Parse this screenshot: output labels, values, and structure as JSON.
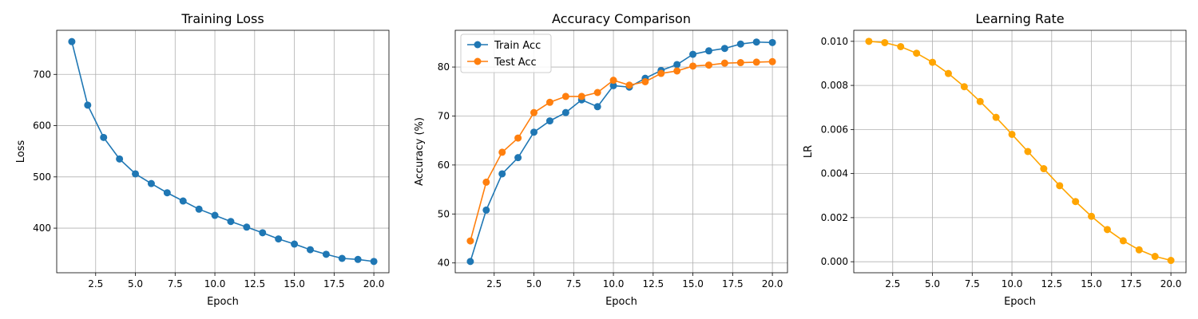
{
  "chart_data": [
    {
      "type": "line",
      "title": "Training Loss",
      "xlabel": "Epoch",
      "ylabel": "Loss",
      "xlim": [
        0.05,
        20.95
      ],
      "ylim": [
        313,
        786
      ],
      "xticks": [
        2.5,
        5,
        7.5,
        10,
        12.5,
        15,
        17.5,
        20
      ],
      "xtick_labels": [
        "2.5",
        "5.0",
        "7.5",
        "10.0",
        "12.5",
        "15.0",
        "17.5",
        "20.0"
      ],
      "yticks": [
        400,
        500,
        600,
        700
      ],
      "ytick_labels": [
        "400",
        "500",
        "600",
        "700"
      ],
      "grid": true,
      "legend": null,
      "x": [
        1,
        2,
        3,
        4,
        5,
        6,
        7,
        8,
        9,
        10,
        11,
        12,
        13,
        14,
        15,
        16,
        17,
        18,
        19,
        20
      ],
      "series": [
        {
          "color": "#1f77b4",
          "values": [
            764,
            640,
            577,
            535,
            506,
            487,
            469,
            453,
            437,
            425,
            413,
            402,
            391,
            379,
            369,
            358,
            349,
            341,
            339,
            335
          ]
        }
      ]
    },
    {
      "type": "line",
      "title": "Accuracy Comparison",
      "xlabel": "Epoch",
      "ylabel": "Accuracy (%)",
      "xlim": [
        0.05,
        20.95
      ],
      "ylim": [
        38.0,
        87.5
      ],
      "xticks": [
        2.5,
        5,
        7.5,
        10,
        12.5,
        15,
        17.5,
        20
      ],
      "xtick_labels": [
        "2.5",
        "5.0",
        "7.5",
        "10.0",
        "12.5",
        "15.0",
        "17.5",
        "20.0"
      ],
      "yticks": [
        40,
        50,
        60,
        70,
        80
      ],
      "ytick_labels": [
        "40",
        "50",
        "60",
        "70",
        "80"
      ],
      "grid": true,
      "legend": "top-left",
      "x": [
        1,
        2,
        3,
        4,
        5,
        6,
        7,
        8,
        9,
        10,
        11,
        12,
        13,
        14,
        15,
        16,
        17,
        18,
        19,
        20
      ],
      "series": [
        {
          "name": "Train Acc",
          "color": "#1f77b4",
          "values": [
            40.3,
            50.8,
            58.2,
            61.5,
            66.7,
            69.0,
            70.7,
            73.3,
            71.9,
            76.2,
            75.9,
            77.7,
            79.3,
            80.5,
            82.6,
            83.3,
            83.8,
            84.7,
            85.1,
            85.0
          ]
        },
        {
          "name": "Test Acc",
          "color": "#ff7f0e",
          "values": [
            44.5,
            56.5,
            62.6,
            65.5,
            70.7,
            72.8,
            74.0,
            74.0,
            74.8,
            77.3,
            76.3,
            77.0,
            78.7,
            79.2,
            80.2,
            80.4,
            80.8,
            80.9,
            81.0,
            81.1
          ]
        }
      ]
    },
    {
      "type": "line",
      "title": "Learning Rate",
      "xlabel": "Epoch",
      "ylabel": "LR",
      "xlim": [
        0.05,
        20.95
      ],
      "ylim": [
        -0.0005,
        0.0105
      ],
      "xticks": [
        2.5,
        5,
        7.5,
        10,
        12.5,
        15,
        17.5,
        20
      ],
      "xtick_labels": [
        "2.5",
        "5.0",
        "7.5",
        "10.0",
        "12.5",
        "15.0",
        "17.5",
        "20.0"
      ],
      "yticks": [
        0,
        0.002,
        0.004,
        0.006,
        0.008,
        0.01
      ],
      "ytick_labels": [
        "0.000",
        "0.002",
        "0.004",
        "0.006",
        "0.008",
        "0.010"
      ],
      "grid": true,
      "legend": null,
      "x": [
        1,
        2,
        3,
        4,
        5,
        6,
        7,
        8,
        9,
        10,
        11,
        12,
        13,
        14,
        15,
        16,
        17,
        18,
        19,
        20
      ],
      "series": [
        {
          "color": "#ffa500",
          "values": [
            0.01,
            0.00994,
            0.00976,
            0.00946,
            0.00905,
            0.00854,
            0.00794,
            0.00727,
            0.00655,
            0.00578,
            0.005,
            0.00422,
            0.00345,
            0.00273,
            0.00206,
            0.00146,
            0.00095,
            0.00054,
            0.00024,
            6e-05
          ]
        }
      ]
    }
  ]
}
